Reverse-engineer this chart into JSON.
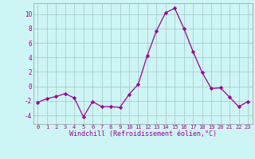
{
  "x": [
    0,
    1,
    2,
    3,
    4,
    5,
    6,
    7,
    8,
    9,
    10,
    11,
    12,
    13,
    14,
    15,
    16,
    17,
    18,
    19,
    20,
    21,
    22,
    23
  ],
  "y": [
    -2.2,
    -1.7,
    -1.4,
    -1.0,
    -1.6,
    -4.2,
    -2.1,
    -2.8,
    -2.8,
    -2.9,
    -1.1,
    0.3,
    4.3,
    7.7,
    10.2,
    10.8,
    8.0,
    4.8,
    1.9,
    -0.3,
    -0.2,
    -1.5,
    -2.8,
    -2.1
  ],
  "line_color": "#9b009b",
  "marker": "D",
  "marker_size": 2.2,
  "background_color": "#cef5f5",
  "grid_color": "#aacccc",
  "axis_label_color": "#9b009b",
  "tick_color": "#9b009b",
  "xlabel": "Windchill (Refroidissement éolien,°C)",
  "ylim": [
    -5.2,
    11.5
  ],
  "xlim": [
    -0.5,
    23.5
  ],
  "yticks": [
    -4,
    -2,
    0,
    2,
    4,
    6,
    8,
    10
  ],
  "xticks": [
    0,
    1,
    2,
    3,
    4,
    5,
    6,
    7,
    8,
    9,
    10,
    11,
    12,
    13,
    14,
    15,
    16,
    17,
    18,
    19,
    20,
    21,
    22,
    23
  ]
}
